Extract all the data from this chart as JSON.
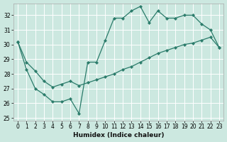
{
  "xlabel": "Humidex (Indice chaleur)",
  "bg_color": "#cce8e0",
  "line_color": "#2a7b6a",
  "xlim": [
    -0.5,
    23.5
  ],
  "ylim": [
    24.8,
    32.8
  ],
  "yticks": [
    25,
    26,
    27,
    28,
    29,
    30,
    31,
    32
  ],
  "xticks": [
    0,
    1,
    2,
    3,
    4,
    5,
    6,
    7,
    8,
    9,
    10,
    11,
    12,
    13,
    14,
    15,
    16,
    17,
    18,
    19,
    20,
    21,
    22,
    23
  ],
  "upper_x": [
    0,
    1,
    2,
    3,
    4,
    5,
    6,
    7,
    8,
    9,
    10,
    11,
    12,
    13,
    14,
    15,
    16,
    17,
    18,
    19,
    20,
    21,
    22,
    23
  ],
  "upper_y": [
    30.2,
    28.3,
    27.0,
    26.6,
    26.1,
    26.1,
    26.3,
    25.3,
    28.8,
    28.8,
    30.3,
    31.8,
    31.8,
    32.3,
    32.6,
    31.5,
    32.3,
    31.8,
    31.8,
    32.0,
    32.0,
    31.4,
    31.0,
    29.8
  ],
  "lower_x": [
    0,
    1,
    2,
    3,
    4,
    5,
    6,
    7,
    8,
    9,
    10,
    11,
    12,
    13,
    14,
    15,
    16,
    17,
    18,
    19,
    20,
    21,
    22,
    23
  ],
  "lower_y": [
    30.2,
    28.8,
    28.2,
    27.5,
    27.1,
    27.3,
    27.5,
    27.2,
    27.4,
    27.6,
    27.8,
    28.0,
    28.3,
    28.5,
    28.8,
    29.1,
    29.4,
    29.6,
    29.8,
    30.0,
    30.1,
    30.3,
    30.5,
    29.8
  ]
}
